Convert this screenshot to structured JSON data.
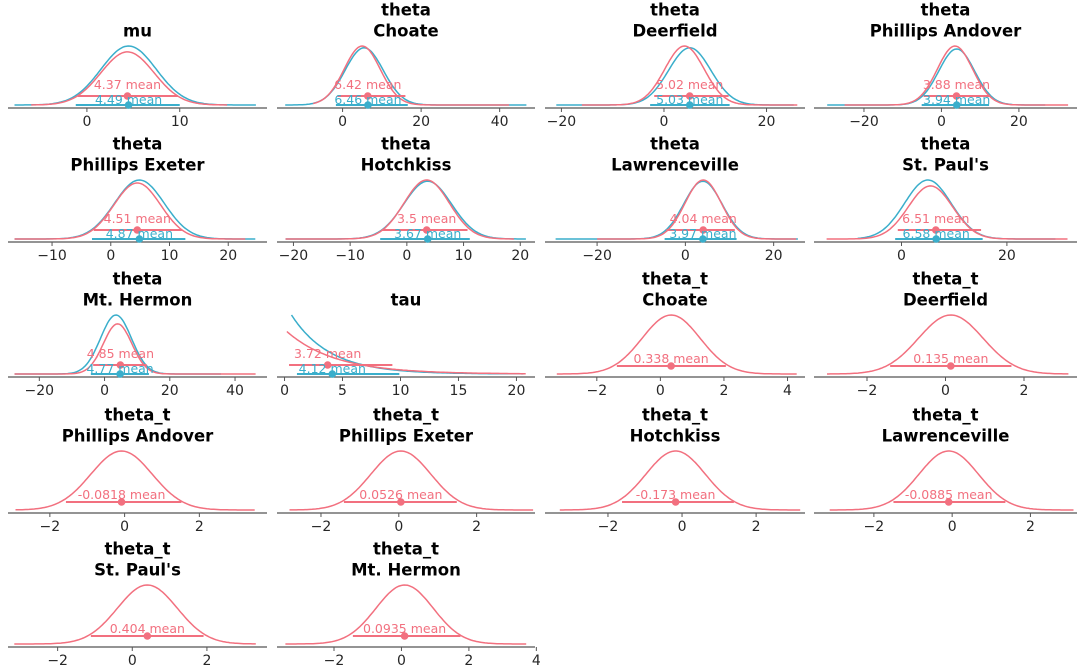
{
  "colors": {
    "red": "#f2707f",
    "blue": "#3aaecb",
    "axis": "#555555"
  },
  "chart_data": {
    "type": "density-grid",
    "grid": false,
    "panels": [
      {
        "title": [
          "mu"
        ],
        "xlim": [
          -8.5,
          19.4
        ],
        "ticks": [
          0,
          10
        ],
        "series": [
          {
            "color": "red",
            "mean": 4.37,
            "label": "4.37 mean",
            "hdi": [
              -1.0,
              9.8
            ],
            "range": [
              -6,
              15.1
            ],
            "peak": 0.9
          },
          {
            "color": "blue",
            "mean": 4.49,
            "label": "4.49 mean",
            "hdi": [
              -1.2,
              10.0
            ],
            "range": [
              -7.8,
              18.2
            ],
            "peak": 1.0
          }
        ]
      },
      {
        "title": [
          "theta",
          "Choate"
        ],
        "xlim": [
          -16.7,
          49
        ],
        "ticks": [
          0,
          20,
          40
        ],
        "series": [
          {
            "color": "red",
            "mean": 6.42,
            "label": "6.42 mean",
            "hdi": [
              -1.3,
              16.0
            ],
            "range": [
              -7.5,
              42.4
            ],
            "peak": 1.0,
            "center": 5
          },
          {
            "color": "blue",
            "mean": 6.46,
            "label": "6.46 mean",
            "hdi": [
              -1.7,
              16.6
            ],
            "range": [
              -14.6,
              46.8
            ],
            "peak": 0.97,
            "center": 5.5
          }
        ]
      },
      {
        "title": [
          "theta",
          "Deerfield"
        ],
        "xlim": [
          -23.2,
          27.5
        ],
        "ticks": [
          -20,
          0,
          20
        ],
        "series": [
          {
            "color": "red",
            "mean": 5.02,
            "label": "5.02 mean",
            "hdi": [
              -1.9,
              12.6
            ],
            "range": [
              -16,
              26
            ],
            "peak": 1.0,
            "center": 4
          },
          {
            "color": "blue",
            "mean": 5.03,
            "label": "5.03 mean",
            "hdi": [
              -2.7,
              12.8
            ],
            "range": [
              -21,
              25.3
            ],
            "peak": 0.97
          }
        ]
      },
      {
        "title": [
          "theta",
          "Phillips Andover"
        ],
        "xlim": [
          -32.9,
          35
        ],
        "ticks": [
          -20,
          0,
          20
        ],
        "series": [
          {
            "color": "red",
            "mean": 3.88,
            "label": "3.88 mean",
            "hdi": [
              -4.6,
              12.6
            ],
            "range": [
              -25,
              32.7
            ],
            "peak": 1.0,
            "center": 3.5
          },
          {
            "color": "blue",
            "mean": 3.94,
            "label": "3.94 mean",
            "hdi": [
              -5.1,
              12.3
            ],
            "range": [
              -29.5,
              26.8
            ],
            "peak": 0.95
          }
        ]
      },
      {
        "title": [
          "theta",
          "Phillips Exeter"
        ],
        "xlim": [
          -17.5,
          26.6
        ],
        "ticks": [
          -10,
          0,
          10,
          20
        ],
        "series": [
          {
            "color": "red",
            "mean": 4.51,
            "label": "4.51 mean",
            "hdi": [
              -2.9,
              12.1
            ],
            "range": [
              -16.4,
              22.9
            ],
            "peak": 0.95
          },
          {
            "color": "blue",
            "mean": 4.87,
            "label": "4.87 mean",
            "hdi": [
              -3.2,
              12.7
            ],
            "range": [
              -16.4,
              24.6
            ],
            "peak": 1.0
          }
        ]
      },
      {
        "title": [
          "theta",
          "Hotchkiss"
        ],
        "xlim": [
          -22.9,
          22.6
        ],
        "ticks": [
          -20,
          -10,
          0,
          10,
          20
        ],
        "series": [
          {
            "color": "red",
            "mean": 3.5,
            "label": "3.5 mean",
            "hdi": [
              -4.4,
              10.7
            ],
            "range": [
              -21.4,
              18.9
            ],
            "peak": 1.0
          },
          {
            "color": "blue",
            "mean": 3.67,
            "label": "3.67 mean",
            "hdi": [
              -4.7,
              11.1
            ],
            "range": [
              -21.4,
              21.0
            ],
            "peak": 0.98
          }
        ]
      },
      {
        "title": [
          "theta",
          "Lawrenceville"
        ],
        "xlim": [
          -31.8,
          27.1
        ],
        "ticks": [
          -20,
          0,
          20
        ],
        "series": [
          {
            "color": "red",
            "mean": 4.04,
            "label": "4.04 mean",
            "hdi": [
              -4.3,
              11.2
            ],
            "range": [
              -20,
              25.1
            ],
            "peak": 1.0
          },
          {
            "color": "blue",
            "mean": 3.97,
            "label": "3.97 mean",
            "hdi": [
              -4.7,
              11.6
            ],
            "range": [
              -29.4,
              25.5
            ],
            "peak": 0.98
          }
        ]
      },
      {
        "title": [
          "theta",
          "St. Paul's"
        ],
        "xlim": [
          -16.6,
          33.3
        ],
        "ticks": [
          0,
          20
        ],
        "series": [
          {
            "color": "red",
            "mean": 6.51,
            "label": "6.51 mean",
            "hdi": [
              -0.7,
              15.1
            ],
            "range": [
              -14.2,
              31.5
            ],
            "peak": 0.9,
            "center": 5.5
          },
          {
            "color": "blue",
            "mean": 6.58,
            "label": "6.58 mean",
            "hdi": [
              -1.2,
              15.4
            ],
            "range": [
              -8.3,
              29.2
            ],
            "peak": 1.0,
            "center": 5
          }
        ]
      },
      {
        "title": [
          "theta",
          "Mt. Hermon"
        ],
        "xlim": [
          -29.6,
          49.8
        ],
        "ticks": [
          -20,
          0,
          20,
          40
        ],
        "series": [
          {
            "color": "red",
            "mean": 4.85,
            "label": "4.85 mean",
            "hdi": [
              -3.5,
              12.9
            ],
            "range": [
              -27.6,
              46.3
            ],
            "peak": 0.85,
            "center": 4
          },
          {
            "color": "blue",
            "mean": 4.77,
            "label": "4.77 mean",
            "hdi": [
              -4.2,
              13.6
            ],
            "range": [
              -27.6,
              35.7
            ],
            "peak": 1.0,
            "center": 3.5
          }
        ]
      },
      {
        "title": [
          "tau"
        ],
        "xlim": [
          -0.65,
          21.6
        ],
        "ticks": [
          0,
          5,
          10,
          15,
          20
        ],
        "series": [
          {
            "color": "red",
            "mean": 3.72,
            "label": "3.72 mean",
            "hdi": [
              0.39,
              9.3
            ],
            "range": [
              0.2,
              20.8
            ],
            "peak": 0.72,
            "shape": "decay",
            "scale": 4.2
          },
          {
            "color": "blue",
            "mean": 4.12,
            "label": "4.12 mean",
            "hdi": [
              1.07,
              9.9
            ],
            "range": [
              0.6,
              20.6
            ],
            "peak": 1.0,
            "shape": "decay",
            "scale": 3.3
          }
        ]
      },
      {
        "title": [
          "theta_t",
          "Choate"
        ],
        "xlim": [
          -3.63,
          4.55
        ],
        "ticks": [
          -2,
          0,
          2,
          4
        ],
        "series": [
          {
            "color": "red",
            "mean": 0.338,
            "label": "0.338 mean",
            "hdi": [
              -1.37,
              2.06
            ],
            "range": [
              -3.26,
              4.29
            ],
            "peak": 1.0
          }
        ]
      },
      {
        "title": [
          "theta_t",
          "Deerfield"
        ],
        "xlim": [
          -3.35,
          3.35
        ],
        "ticks": [
          -2,
          0,
          2
        ],
        "series": [
          {
            "color": "red",
            "mean": 0.135,
            "label": "0.135 mean",
            "hdi": [
              -1.41,
              1.68
            ],
            "range": [
              -3.02,
              3.13
            ],
            "peak": 1.0
          }
        ]
      },
      {
        "title": [
          "theta_t",
          "Phillips Andover"
        ],
        "xlim": [
          -3.12,
          3.81
        ],
        "ticks": [
          -2,
          0,
          2
        ],
        "series": [
          {
            "color": "red",
            "mean": -0.0818,
            "label": "-0.0818 mean",
            "hdi": [
              -1.57,
              1.52
            ],
            "range": [
              -2.92,
              3.48
            ],
            "peak": 1.0
          }
        ]
      },
      {
        "title": [
          "theta_t",
          "Phillips Exeter"
        ],
        "xlim": [
          -3.13,
          3.5
        ],
        "ticks": [
          -2,
          0,
          2
        ],
        "series": [
          {
            "color": "red",
            "mean": 0.0526,
            "label": "0.0526 mean",
            "hdi": [
              -1.41,
              1.49
            ],
            "range": [
              -2.81,
              3.45
            ],
            "peak": 1.0
          }
        ]
      },
      {
        "title": [
          "theta_t",
          "Hotchkiss"
        ],
        "xlim": [
          -3.7,
          3.32
        ],
        "ticks": [
          -2,
          0,
          2
        ],
        "series": [
          {
            "color": "red",
            "mean": -0.173,
            "label": "-0.173 mean",
            "hdi": [
              -1.62,
              1.4
            ],
            "range": [
              -3.3,
              3.19
            ],
            "peak": 1.0
          }
        ]
      },
      {
        "title": [
          "theta_t",
          "Lawrenceville"
        ],
        "xlim": [
          -3.53,
          3.19
        ],
        "ticks": [
          -2,
          0,
          2
        ],
        "series": [
          {
            "color": "red",
            "mean": -0.0885,
            "label": "-0.0885 mean",
            "hdi": [
              -1.5,
              1.36
            ],
            "range": [
              -3.13,
              3.1
            ],
            "peak": 1.0
          }
        ]
      },
      {
        "title": [
          "theta_t",
          "St. Paul's"
        ],
        "xlim": [
          -3.33,
          3.61
        ],
        "ticks": [
          -2,
          0,
          2
        ],
        "series": [
          {
            "color": "red",
            "mean": 0.404,
            "label": "0.404 mean",
            "hdi": [
              -1.11,
              1.91
            ],
            "range": [
              -3.16,
              3.31
            ],
            "peak": 1.0
          }
        ]
      },
      {
        "title": [
          "theta_t",
          "Mt. Hermon"
        ],
        "xlim": [
          -3.69,
          3.96
        ],
        "ticks": [
          -2,
          0,
          2,
          4
        ],
        "series": [
          {
            "color": "red",
            "mean": 0.0935,
            "label": "0.0935 mean",
            "hdi": [
              -1.44,
              1.75
            ],
            "range": [
              -3.44,
              3.7
            ],
            "peak": 1.0
          }
        ]
      }
    ]
  }
}
